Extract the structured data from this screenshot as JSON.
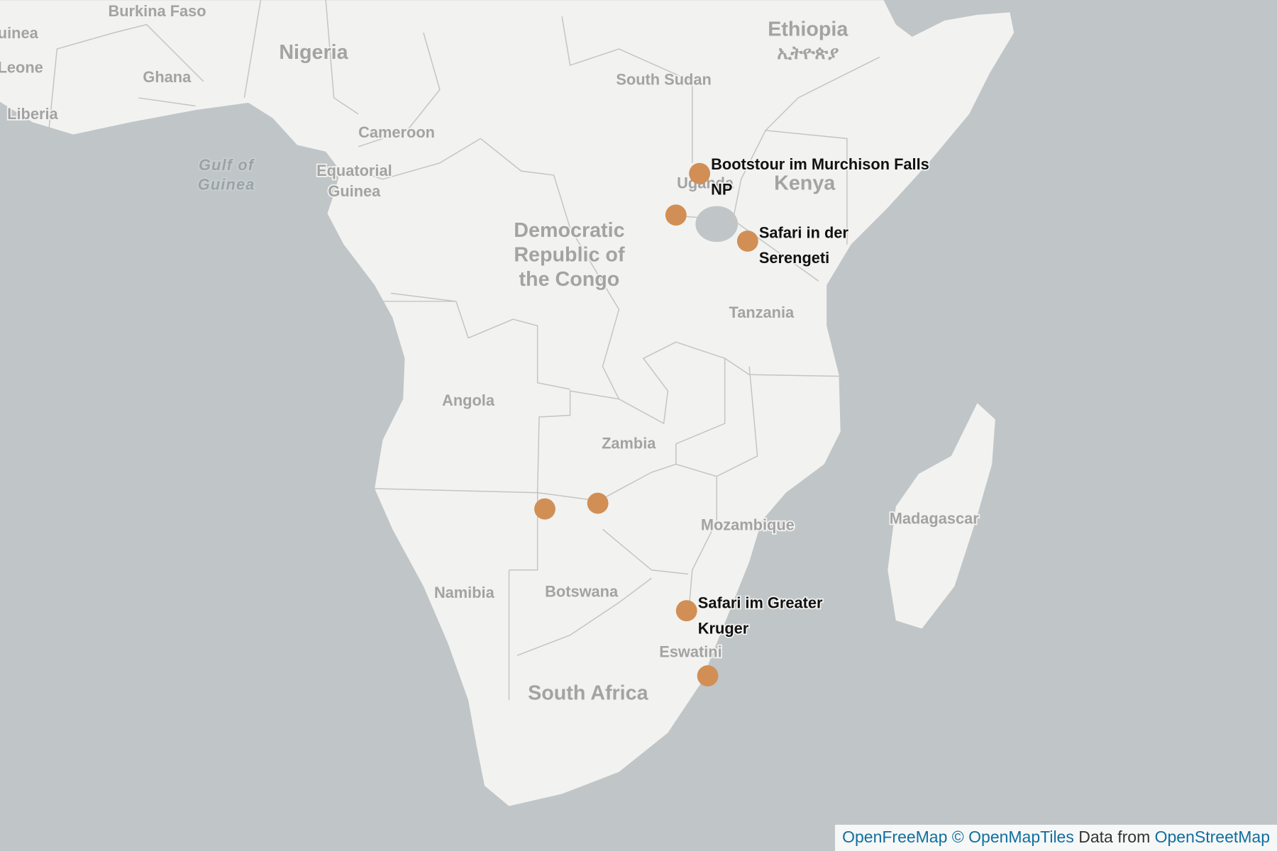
{
  "map": {
    "place_labels": [
      {
        "lines": [
          "Burkina Faso"
        ]
      },
      {
        "lines": [
          "uinea"
        ]
      },
      {
        "lines": [
          "Leone"
        ]
      },
      {
        "lines": [
          "Nigeria"
        ]
      },
      {
        "lines": [
          "Ghana"
        ]
      },
      {
        "lines": [
          "Liberia"
        ]
      },
      {
        "lines": [
          "Cameroon"
        ]
      },
      {
        "lines": [
          "Equatorial",
          "Guinea"
        ]
      },
      {
        "lines": [
          "Ethiopia",
          "ኢትዮጵያ"
        ]
      },
      {
        "lines": [
          "South Sudan"
        ]
      },
      {
        "lines": [
          "Uganda"
        ]
      },
      {
        "lines": [
          "Kenya"
        ]
      },
      {
        "lines": [
          "Democratic",
          "Republic of",
          "the Congo"
        ]
      },
      {
        "lines": [
          "Tanzania"
        ]
      },
      {
        "lines": [
          "Angola"
        ]
      },
      {
        "lines": [
          "Zambia"
        ]
      },
      {
        "lines": [
          "Mozambique"
        ]
      },
      {
        "lines": [
          "Madagascar"
        ]
      },
      {
        "lines": [
          "Namibia"
        ]
      },
      {
        "lines": [
          "Botswana"
        ]
      },
      {
        "lines": [
          "Eswatini"
        ]
      },
      {
        "lines": [
          "South Africa"
        ]
      }
    ],
    "water_labels": [
      {
        "lines": [
          "Gulf of",
          "Guinea"
        ]
      }
    ],
    "markers": [
      {
        "label_lines": [
          "Bootstour im Murchison Falls",
          "NP"
        ]
      },
      {
        "label_lines": []
      },
      {
        "label_lines": [
          "Safari in der",
          "Serengeti"
        ]
      },
      {
        "label_lines": []
      },
      {
        "label_lines": []
      },
      {
        "label_lines": [
          "Safari im Greater",
          "Kruger"
        ]
      },
      {
        "label_lines": []
      }
    ],
    "attribution": {
      "links": [
        "OpenFreeMap",
        "© OpenMapTiles"
      ],
      "text": "Data from",
      "source": "OpenStreetMap"
    }
  }
}
